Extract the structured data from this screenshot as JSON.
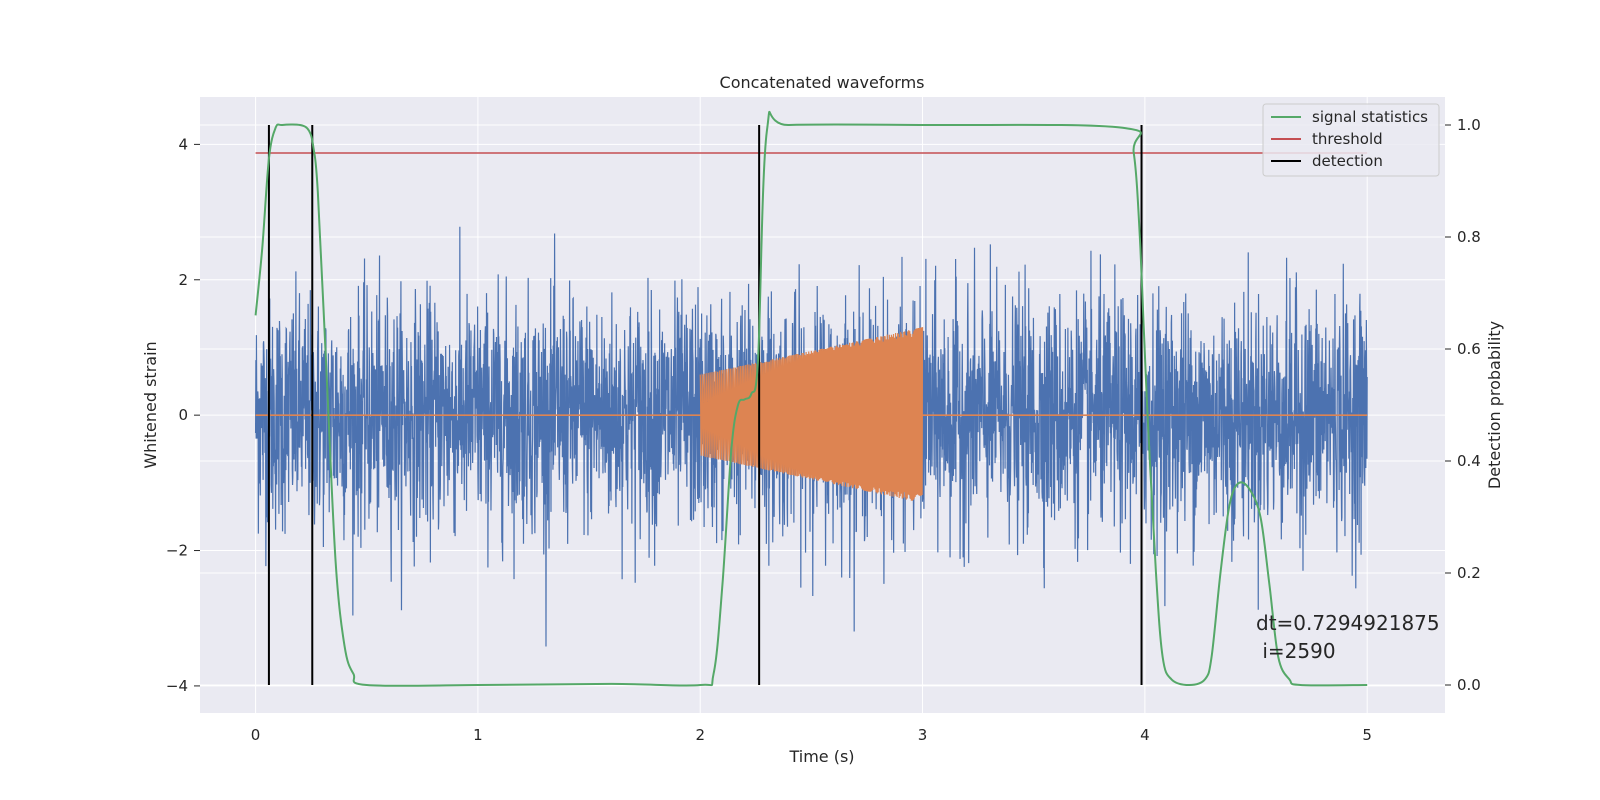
{
  "chart_data": {
    "type": "line",
    "title": "Concatenated waveforms",
    "xlabel": "Time (s)",
    "ylabel": "Whitened strain",
    "y2label": "Detection probability",
    "xlim": [
      -0.25,
      5.35
    ],
    "ylim": [
      -4.4,
      4.7
    ],
    "y2lim": [
      -0.05,
      1.05
    ],
    "xticks": [
      0,
      1,
      2,
      3,
      4,
      5
    ],
    "yticks": [
      -4,
      -2,
      0,
      2,
      4
    ],
    "y2ticks": [
      0.0,
      0.2,
      0.4,
      0.6,
      0.8,
      1.0
    ],
    "y2tick_labels": [
      "0.0",
      "0.2",
      "0.4",
      "0.6",
      "0.8",
      "1.0"
    ],
    "yticks_display": [
      "−4",
      "−2",
      "0",
      "2",
      "4"
    ],
    "grid": true,
    "legend_position": "top-right",
    "colors": {
      "background": "#eaeaf2",
      "grid": "#ffffff",
      "strain": "#4c72b0",
      "waveform": "#dd8452",
      "signal": "#55a868",
      "threshold": "#c44e52",
      "detection": "#000000"
    },
    "series": [
      {
        "name": "",
        "role": "strain",
        "axis": "left",
        "x_range": [
          0,
          5
        ],
        "amplitude_std": 0.85,
        "description": "noisy whitened strain"
      },
      {
        "name": "",
        "role": "waveform",
        "axis": "left",
        "x_range": [
          2.0,
          3.0
        ],
        "envelope_start": 0.6,
        "envelope_end": 1.3
      },
      {
        "name": "signal statistics",
        "role": "signal",
        "axis": "right",
        "x": [
          0.0,
          0.03,
          0.06,
          0.09,
          0.12,
          0.2,
          0.24,
          0.26,
          0.28,
          0.32,
          0.36,
          0.4,
          0.44,
          0.5,
          1.0,
          1.6,
          2.0,
          2.06,
          2.1,
          2.14,
          2.17,
          2.2,
          2.23,
          2.26,
          2.3,
          2.4,
          3.0,
          3.9,
          3.95,
          3.98,
          4.01,
          4.05,
          4.08,
          4.12,
          4.2,
          4.27,
          4.3,
          4.34,
          4.38,
          4.42,
          4.47,
          4.52,
          4.56,
          4.6,
          4.65,
          4.7,
          5.0
        ],
        "y": [
          0.66,
          0.78,
          0.94,
          0.995,
          1.0,
          1.0,
          0.99,
          0.96,
          0.88,
          0.55,
          0.22,
          0.07,
          0.02,
          0.0,
          0.0,
          0.002,
          0.0,
          0.02,
          0.18,
          0.42,
          0.5,
          0.51,
          0.52,
          0.58,
          0.99,
          1.0,
          1.0,
          0.995,
          0.95,
          0.78,
          0.5,
          0.2,
          0.05,
          0.01,
          0.0,
          0.01,
          0.05,
          0.2,
          0.32,
          0.36,
          0.35,
          0.3,
          0.18,
          0.05,
          0.01,
          0.0,
          0.0
        ]
      },
      {
        "name": "threshold",
        "role": "threshold",
        "axis": "right",
        "x": [
          0,
          5
        ],
        "y": [
          0.95,
          0.95
        ]
      },
      {
        "name": "detection",
        "role": "detection",
        "axis": "right",
        "x": [
          0.06,
          0.255,
          2.265,
          3.985
        ],
        "ymin": 0.0,
        "ymax": 1.0
      }
    ],
    "annotation": {
      "line1": "dt=0.7294921875",
      "line2": " i=2590",
      "x": 4.5,
      "y": -3.9
    }
  }
}
